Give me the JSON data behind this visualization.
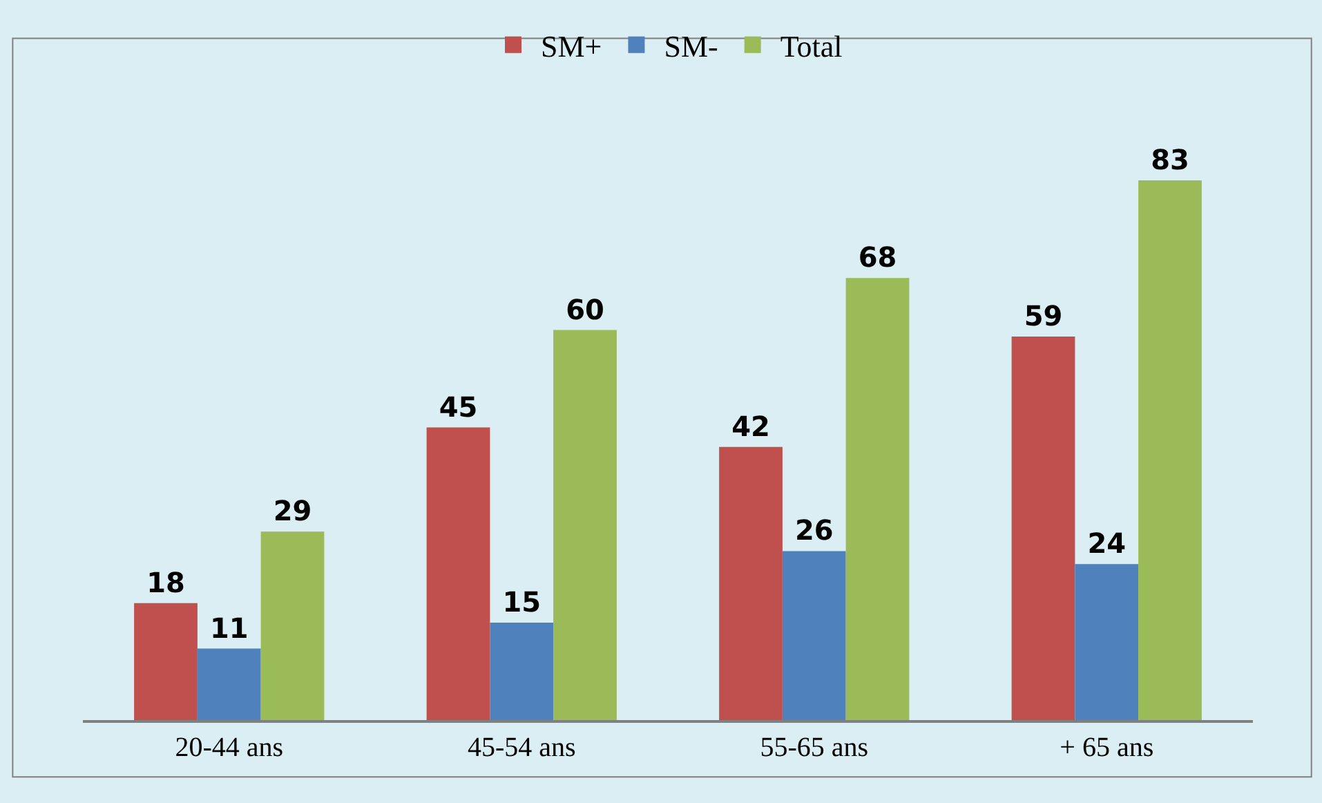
{
  "chart_data": {
    "type": "bar",
    "categories": [
      "20-44 ans",
      "45-54 ans",
      "55-65 ans",
      "+ 65 ans"
    ],
    "series": [
      {
        "name": "SM+",
        "color": "#c0504d",
        "values": [
          18,
          45,
          42,
          59
        ]
      },
      {
        "name": "SM-",
        "color": "#4f81bd",
        "values": [
          11,
          15,
          26,
          24
        ]
      },
      {
        "name": "Total",
        "color": "#9bbb59",
        "values": [
          29,
          60,
          68,
          83
        ]
      }
    ],
    "data_labels": true,
    "legend": "top"
  }
}
